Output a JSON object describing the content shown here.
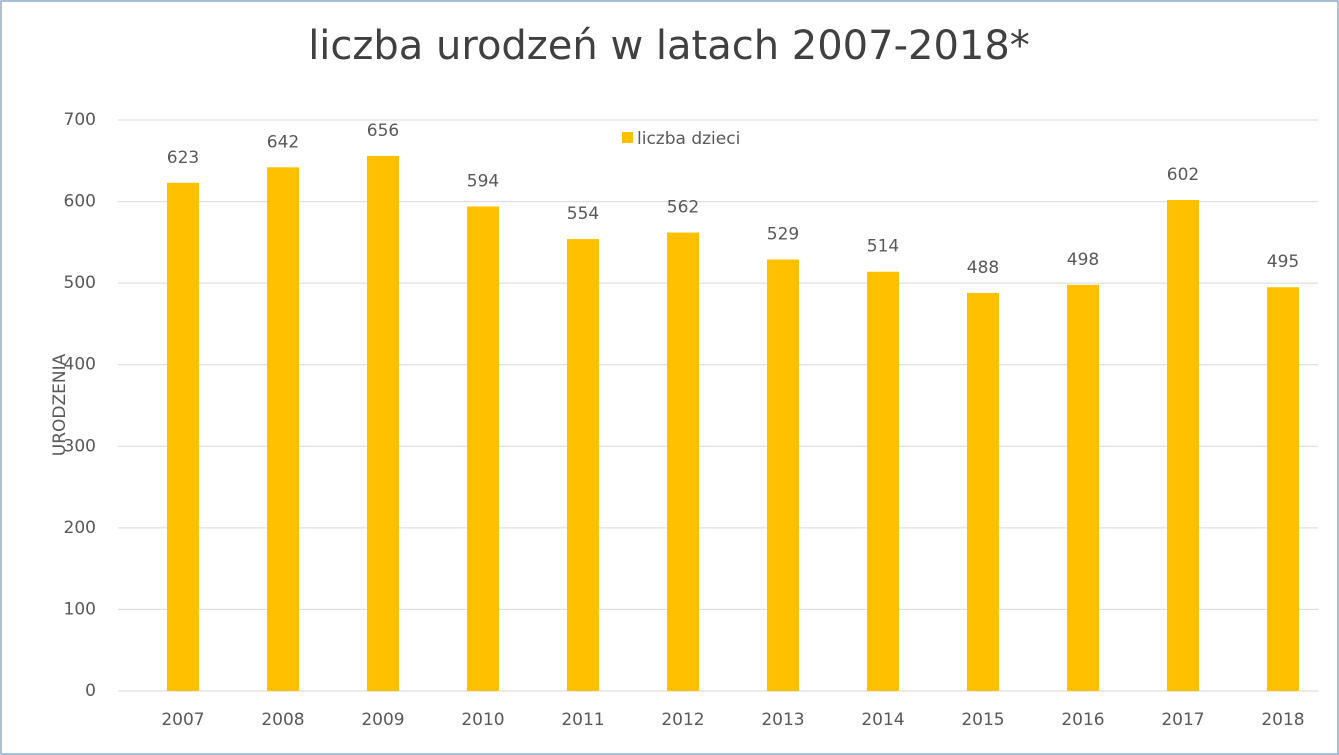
{
  "chart_data": {
    "type": "bar",
    "title": "liczba urodzeń w latach 2007-2018*",
    "y_label": "URODZENIA",
    "categories": [
      "2007",
      "2008",
      "2009",
      "2010",
      "2011",
      "2012",
      "2013",
      "2014",
      "2015",
      "2016",
      "2017",
      "2018"
    ],
    "series": [
      {
        "name": "liczba dzieci",
        "color": "#ffc000",
        "values": [
          623,
          642,
          656,
          594,
          554,
          562,
          529,
          514,
          488,
          498,
          602,
          495
        ]
      }
    ],
    "ylim": [
      0,
      700
    ],
    "yticks": [
      0,
      100,
      200,
      300,
      400,
      500,
      600,
      700
    ],
    "grid": true,
    "legend": "top"
  }
}
